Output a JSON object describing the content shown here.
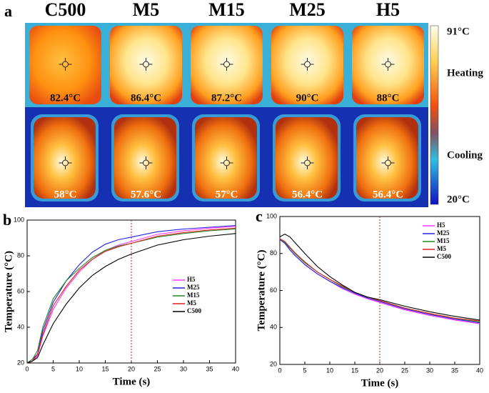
{
  "panel_a": {
    "label": "a",
    "samples": [
      {
        "name": "C500",
        "heating": "82.4°C",
        "cooling": "58°C"
      },
      {
        "name": "M5",
        "heating": "86.4°C",
        "cooling": "57.6°C"
      },
      {
        "name": "M15",
        "heating": "87.2°C",
        "cooling": "57°C"
      },
      {
        "name": "M25",
        "heating": "90°C",
        "cooling": "56.4°C"
      },
      {
        "name": "H5",
        "heating": "88°C",
        "cooling": "56.4°C"
      }
    ],
    "colorbar": {
      "max": "91°C",
      "heating": "Heating",
      "cooling": "Cooling",
      "min": "20°C"
    }
  },
  "chart_data": [
    {
      "type": "line",
      "panel": "b",
      "xlabel": "Time (s)",
      "ylabel": "Temperature (°C)",
      "x": [
        0,
        1,
        2,
        3,
        5,
        7.5,
        10,
        12.5,
        15,
        17.5,
        20,
        25,
        30,
        35,
        40
      ],
      "xlim": [
        0,
        40
      ],
      "xticks": [
        0,
        5,
        10,
        15,
        20,
        25,
        30,
        35,
        40
      ],
      "ylim": [
        20,
        100
      ],
      "yticks": [
        20,
        40,
        60,
        80,
        100
      ],
      "vline": 20,
      "series": [
        {
          "name": "H5",
          "color": "#ff33ff",
          "values": [
            20,
            21,
            24,
            35,
            50,
            62,
            71,
            78,
            83,
            86,
            88,
            92,
            94,
            95.5,
            96.5
          ]
        },
        {
          "name": "M25",
          "color": "#2222dd",
          "values": [
            20,
            22,
            25,
            38,
            54,
            66,
            75,
            82,
            86.5,
            89,
            90.5,
            93.5,
            95,
            96,
            97
          ]
        },
        {
          "name": "M15",
          "color": "#228822",
          "values": [
            20,
            22,
            27,
            40,
            56,
            66,
            73,
            79,
            83,
            85.5,
            87,
            90.5,
            92.5,
            94,
            95
          ]
        },
        {
          "name": "M5",
          "color": "#dd2222",
          "values": [
            20,
            21,
            25,
            36,
            52,
            63,
            72,
            78,
            82.5,
            85,
            87,
            91,
            93,
            94.5,
            95.5
          ]
        },
        {
          "name": "C500",
          "color": "#000000",
          "values": [
            20,
            21,
            23,
            30,
            42,
            53,
            62,
            69,
            74,
            78,
            81,
            86,
            89,
            91,
            92.5
          ]
        }
      ]
    },
    {
      "type": "line",
      "panel": "c",
      "xlabel": "Time (s)",
      "ylabel": "Temperature (°C)",
      "x": [
        0,
        1,
        2,
        3,
        5,
        7.5,
        10,
        12.5,
        15,
        17.5,
        20,
        25,
        30,
        35,
        40
      ],
      "xlim": [
        0,
        40
      ],
      "xticks": [
        0,
        5,
        10,
        15,
        20,
        25,
        30,
        35,
        40
      ],
      "ylim": [
        20,
        100
      ],
      "yticks": [
        20,
        40,
        60,
        80,
        100
      ],
      "vline": 20,
      "series": [
        {
          "name": "H5",
          "color": "#ff33ff",
          "values": [
            88,
            86,
            82,
            79,
            74,
            69,
            65,
            61,
            58,
            55.5,
            53.5,
            49.5,
            46.5,
            44,
            42
          ]
        },
        {
          "name": "M25",
          "color": "#2222dd",
          "values": [
            87.5,
            85.5,
            82,
            79,
            74,
            69,
            65,
            61.5,
            58.5,
            56,
            54,
            50,
            47,
            44.5,
            42.5
          ]
        },
        {
          "name": "M15",
          "color": "#228822",
          "values": [
            88,
            86,
            83,
            80,
            75,
            70,
            66,
            62,
            59,
            56.5,
            54.5,
            50.5,
            47.5,
            45,
            43
          ]
        },
        {
          "name": "M5",
          "color": "#dd2222",
          "values": [
            88,
            86.5,
            83.5,
            80.5,
            75.5,
            70,
            66,
            62.5,
            59,
            56.5,
            54.5,
            50.5,
            47.5,
            45,
            43.5
          ]
        },
        {
          "name": "C500",
          "color": "#000000",
          "values": [
            89,
            90.5,
            89,
            86,
            80,
            73,
            67.5,
            63,
            59,
            56.5,
            55,
            51.5,
            48.5,
            46,
            44
          ]
        }
      ]
    }
  ]
}
